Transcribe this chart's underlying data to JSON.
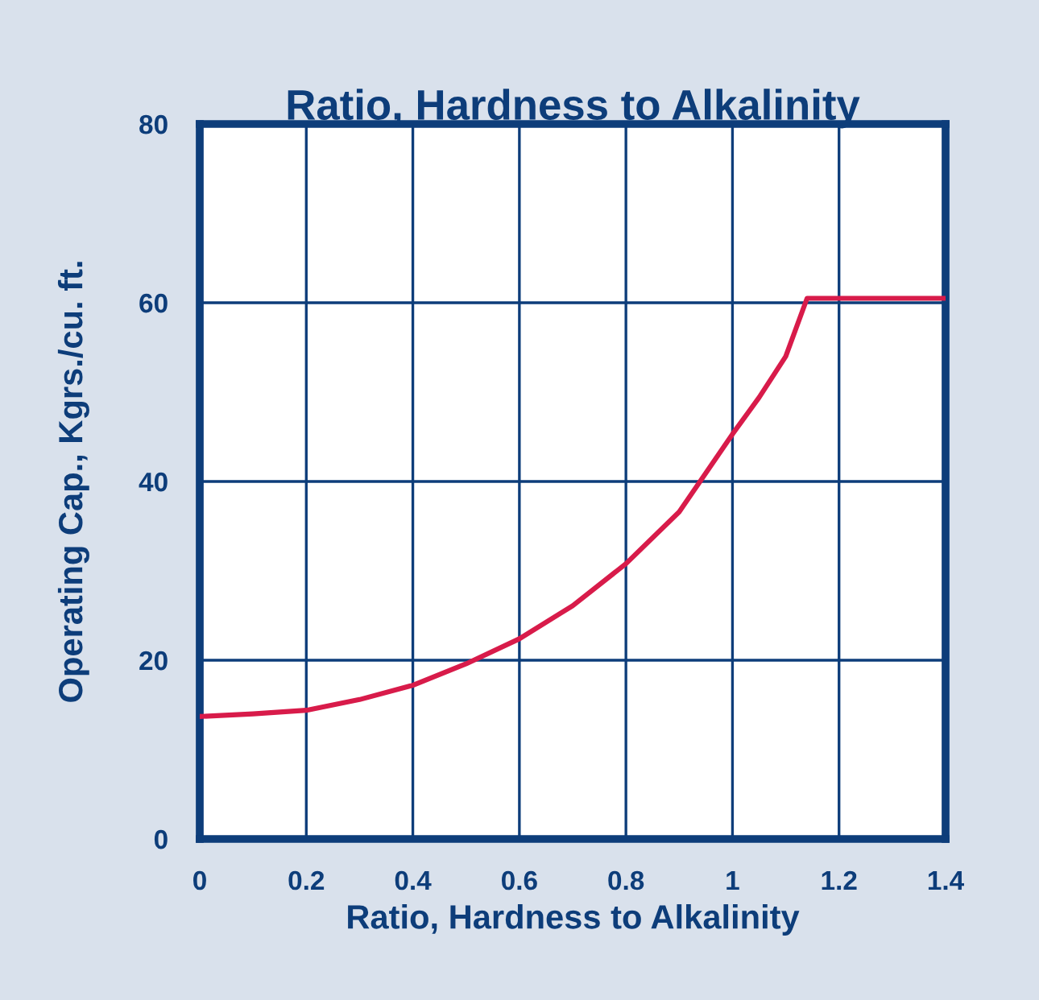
{
  "chart_data": {
    "type": "line",
    "title": "Ratio, Hardness to Alkalinity",
    "xlabel": "Ratio, Hardness to Alkalinity",
    "ylabel": "Operating Cap., Kgrs./cu. ft.",
    "series": [
      {
        "color": "#d81b4a",
        "x": [
          0,
          0.1,
          0.2,
          0.3,
          0.4,
          0.5,
          0.6,
          0.7,
          0.8,
          0.9,
          1.0,
          1.05,
          1.1,
          1.14,
          1.4
        ],
        "values": [
          13.7,
          14.0,
          14.4,
          15.6,
          17.2,
          19.6,
          22.4,
          26.1,
          30.8,
          36.6,
          45.3,
          49.4,
          54.0,
          60.5,
          60.5
        ]
      }
    ],
    "xlim": [
      0,
      1.4
    ],
    "ylim": [
      0,
      80
    ],
    "xticks": [
      0,
      0.2,
      0.4,
      0.6,
      0.8,
      1,
      1.2,
      1.4
    ],
    "yticks": [
      0,
      20,
      40,
      60,
      80
    ],
    "grid": true,
    "marker": "none",
    "line_style": "solid"
  }
}
